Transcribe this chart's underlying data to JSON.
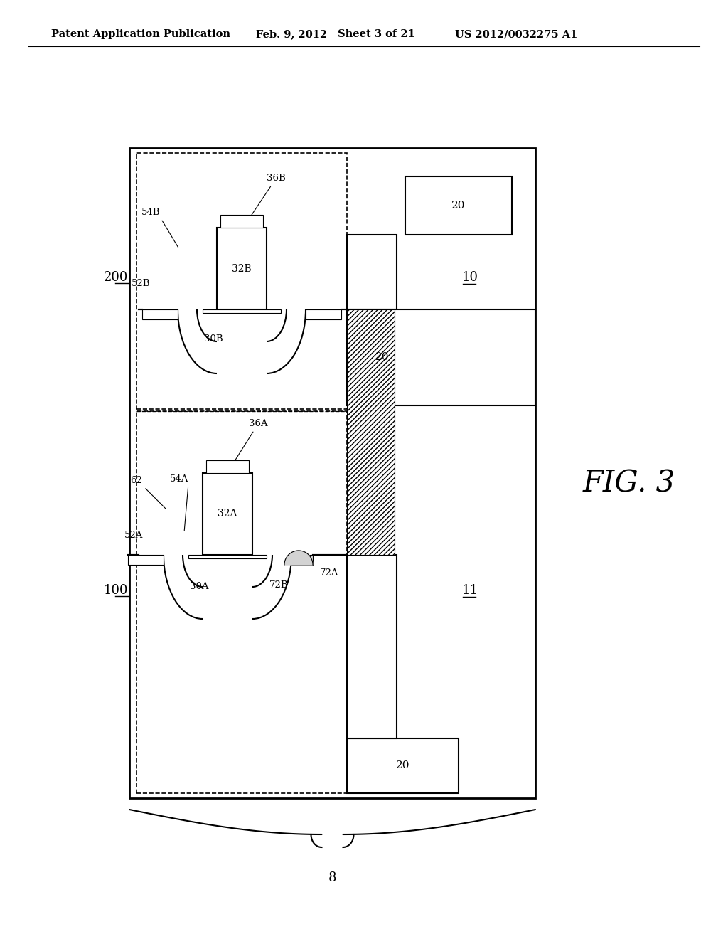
{
  "bg_color": "#ffffff",
  "line_color": "#000000",
  "header_text": "Patent Application Publication",
  "header_date": "Feb. 9, 2012",
  "header_sheet": "Sheet 3 of 21",
  "header_patent": "US 2012/0032275 A1",
  "fig_label": "FIG. 3",
  "brace_label": "8"
}
